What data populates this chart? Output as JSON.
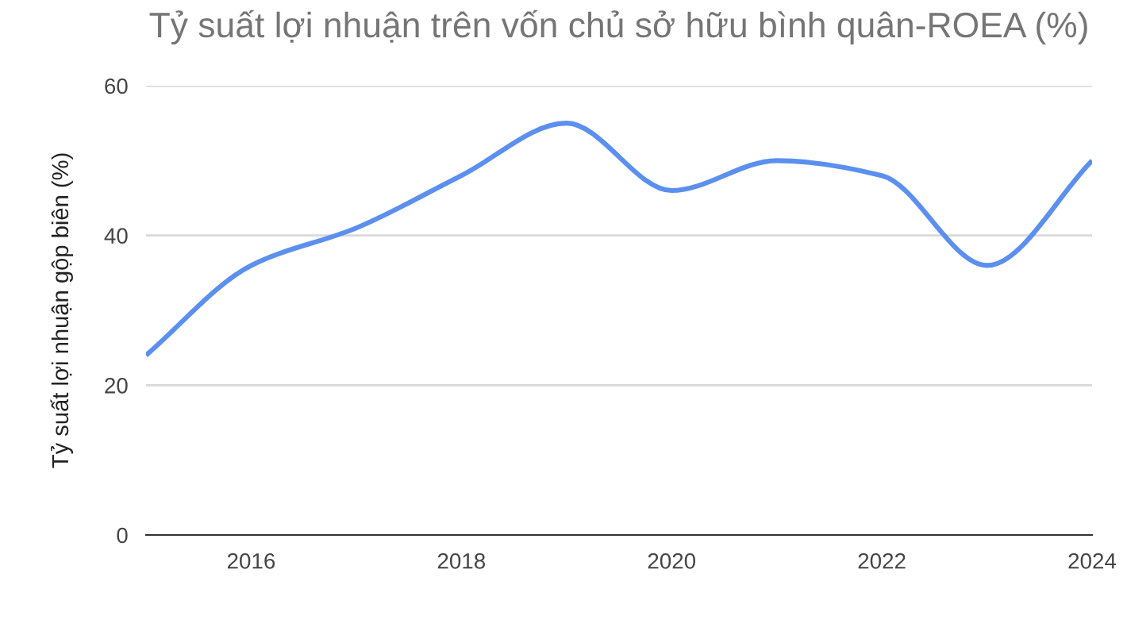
{
  "chart_data": {
    "type": "line",
    "title": "Tỷ suất lợi nhuận trên vốn chủ sở hữu bình quân-ROEA (%)",
    "ylabel": "Tỷ suất lợi nhuận gộp biên (%)",
    "x": [
      2015,
      2016,
      2017,
      2018,
      2019,
      2020,
      2021,
      2022,
      2023,
      2024
    ],
    "series": [
      {
        "color": "#5b8ff0",
        "values": [
          24,
          36,
          41,
          48,
          55,
          46,
          50,
          48,
          36,
          50
        ]
      }
    ],
    "xlim": [
      2015,
      2024
    ],
    "xticks": [
      2016,
      2018,
      2020,
      2022,
      2024
    ],
    "ylim": [
      0,
      60
    ],
    "yticks": [
      0,
      20,
      40,
      60
    ],
    "grid": "y",
    "marker": "none",
    "line_style": "solid"
  }
}
